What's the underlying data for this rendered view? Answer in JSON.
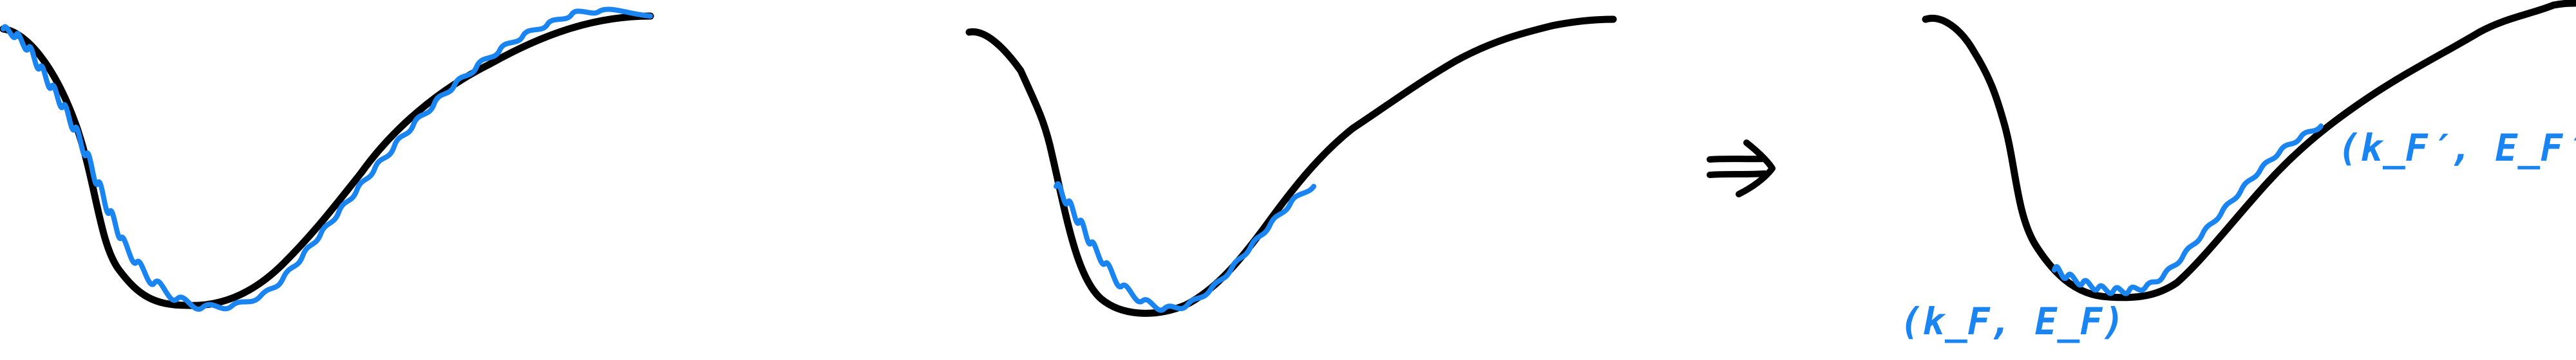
{
  "colors": {
    "band": "#000000",
    "fluctuation": "#1a85f0"
  },
  "panels": [
    {
      "band": "band-curve-1",
      "fluctuation": "noise-full"
    },
    {
      "band": "band-curve-2",
      "fluctuation": "noise-partial"
    },
    {
      "band": "band-curve-3",
      "fluctuation": "noise-segment"
    }
  ],
  "arrow_icon": "implies-arrow-icon",
  "labels": {
    "fermi_point": "(k_F, E_F)",
    "fermi_point_prime": "(k_F′, E_F′)"
  }
}
